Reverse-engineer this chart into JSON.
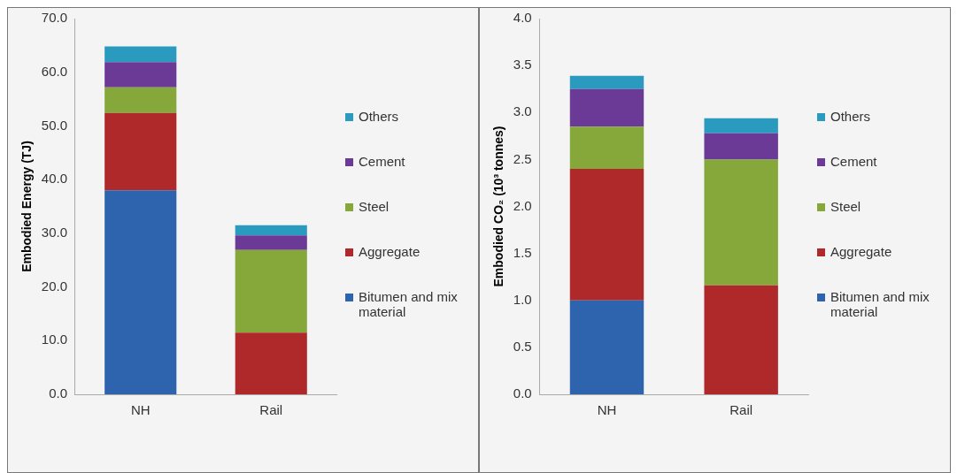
{
  "chart_data": [
    {
      "type": "bar",
      "stacked": true,
      "ylabel": "Embodied Energy (TJ)",
      "categories": [
        "NH",
        "Rail"
      ],
      "ylim": [
        0,
        70
      ],
      "yticks": [
        {
          "value": 0,
          "label": "0.0"
        },
        {
          "value": 10,
          "label": "10.0"
        },
        {
          "value": 20,
          "label": "20.0"
        },
        {
          "value": 30,
          "label": "30.0"
        },
        {
          "value": 40,
          "label": "40.0"
        },
        {
          "value": 50,
          "label": "50.0"
        },
        {
          "value": 60,
          "label": "60.0"
        },
        {
          "value": 70,
          "label": "70.0"
        }
      ],
      "grid": false,
      "legend": "right",
      "series": [
        {
          "name": "Bitumen and mix material",
          "color": "#2e64ae",
          "values": [
            38.0,
            0
          ]
        },
        {
          "name": "Aggregate",
          "color": "#b0292a",
          "values": [
            14.4,
            11.5
          ]
        },
        {
          "name": "Steel",
          "color": "#86a83b",
          "values": [
            4.8,
            15.4
          ]
        },
        {
          "name": "Cement",
          "color": "#6b3a96",
          "values": [
            4.7,
            2.7
          ]
        },
        {
          "name": "Others",
          "color": "#2a9bbf",
          "values": [
            2.9,
            1.9
          ]
        }
      ]
    },
    {
      "type": "bar",
      "stacked": true,
      "ylabel": "Embodied CO₂ (10³ tonnes)",
      "categories": [
        "NH",
        "Rail"
      ],
      "ylim": [
        0,
        4
      ],
      "yticks": [
        {
          "value": 0,
          "label": "0.0"
        },
        {
          "value": 0.5,
          "label": "0.5"
        },
        {
          "value": 1,
          "label": "1.0"
        },
        {
          "value": 1.5,
          "label": "1.5"
        },
        {
          "value": 2,
          "label": "2.0"
        },
        {
          "value": 2.5,
          "label": "2.5"
        },
        {
          "value": 3,
          "label": "3.0"
        },
        {
          "value": 3.5,
          "label": "3.5"
        },
        {
          "value": 4,
          "label": "4.0"
        }
      ],
      "grid": false,
      "legend": "right",
      "series": [
        {
          "name": "Bitumen and mix material",
          "color": "#2e64ae",
          "values": [
            1.0,
            0
          ]
        },
        {
          "name": "Aggregate",
          "color": "#b0292a",
          "values": [
            1.4,
            1.16
          ]
        },
        {
          "name": "Steel",
          "color": "#86a83b",
          "values": [
            0.45,
            1.34
          ]
        },
        {
          "name": "Cement",
          "color": "#6b3a96",
          "values": [
            0.4,
            0.28
          ]
        },
        {
          "name": "Others",
          "color": "#2a9bbf",
          "values": [
            0.14,
            0.16
          ]
        }
      ]
    }
  ]
}
